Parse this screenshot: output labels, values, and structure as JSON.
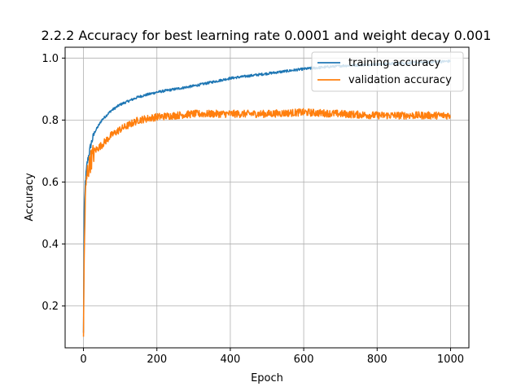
{
  "chart_data": {
    "type": "line",
    "title": "2.2.2 Accuracy for best learning rate 0.0001 and weight decay 0.001",
    "xlabel": "Epoch",
    "ylabel": "Accuracy",
    "xlim": [
      -50,
      1050
    ],
    "ylim": [
      0.065,
      1.035
    ],
    "xticks": [
      0,
      200,
      400,
      600,
      800,
      1000
    ],
    "yticks": [
      0.2,
      0.4,
      0.6,
      0.8,
      1.0
    ],
    "xtick_labels": [
      "0",
      "200",
      "400",
      "600",
      "800",
      "1000"
    ],
    "ytick_labels": [
      "0.2",
      "0.4",
      "0.6",
      "0.8",
      "1.0"
    ],
    "grid": true,
    "legend_position": "top-right",
    "x_range": [
      0,
      999
    ],
    "series": [
      {
        "name": "training accuracy",
        "color": "#1f77b4",
        "x": [
          0,
          2,
          5,
          10,
          20,
          30,
          50,
          75,
          100,
          150,
          200,
          250,
          300,
          400,
          500,
          600,
          700,
          800,
          900,
          999
        ],
        "y": [
          0.11,
          0.5,
          0.6,
          0.66,
          0.72,
          0.76,
          0.8,
          0.83,
          0.85,
          0.875,
          0.89,
          0.9,
          0.91,
          0.935,
          0.95,
          0.965,
          0.975,
          0.98,
          0.985,
          0.99
        ]
      },
      {
        "name": "validation accuracy",
        "color": "#ff7f0e",
        "x": [
          0,
          2,
          5,
          10,
          20,
          30,
          50,
          75,
          100,
          150,
          200,
          250,
          300,
          400,
          500,
          600,
          700,
          800,
          900,
          999
        ],
        "y": [
          0.11,
          0.35,
          0.55,
          0.63,
          0.67,
          0.7,
          0.72,
          0.75,
          0.77,
          0.8,
          0.81,
          0.815,
          0.82,
          0.82,
          0.82,
          0.825,
          0.82,
          0.815,
          0.815,
          0.815
        ]
      }
    ]
  }
}
